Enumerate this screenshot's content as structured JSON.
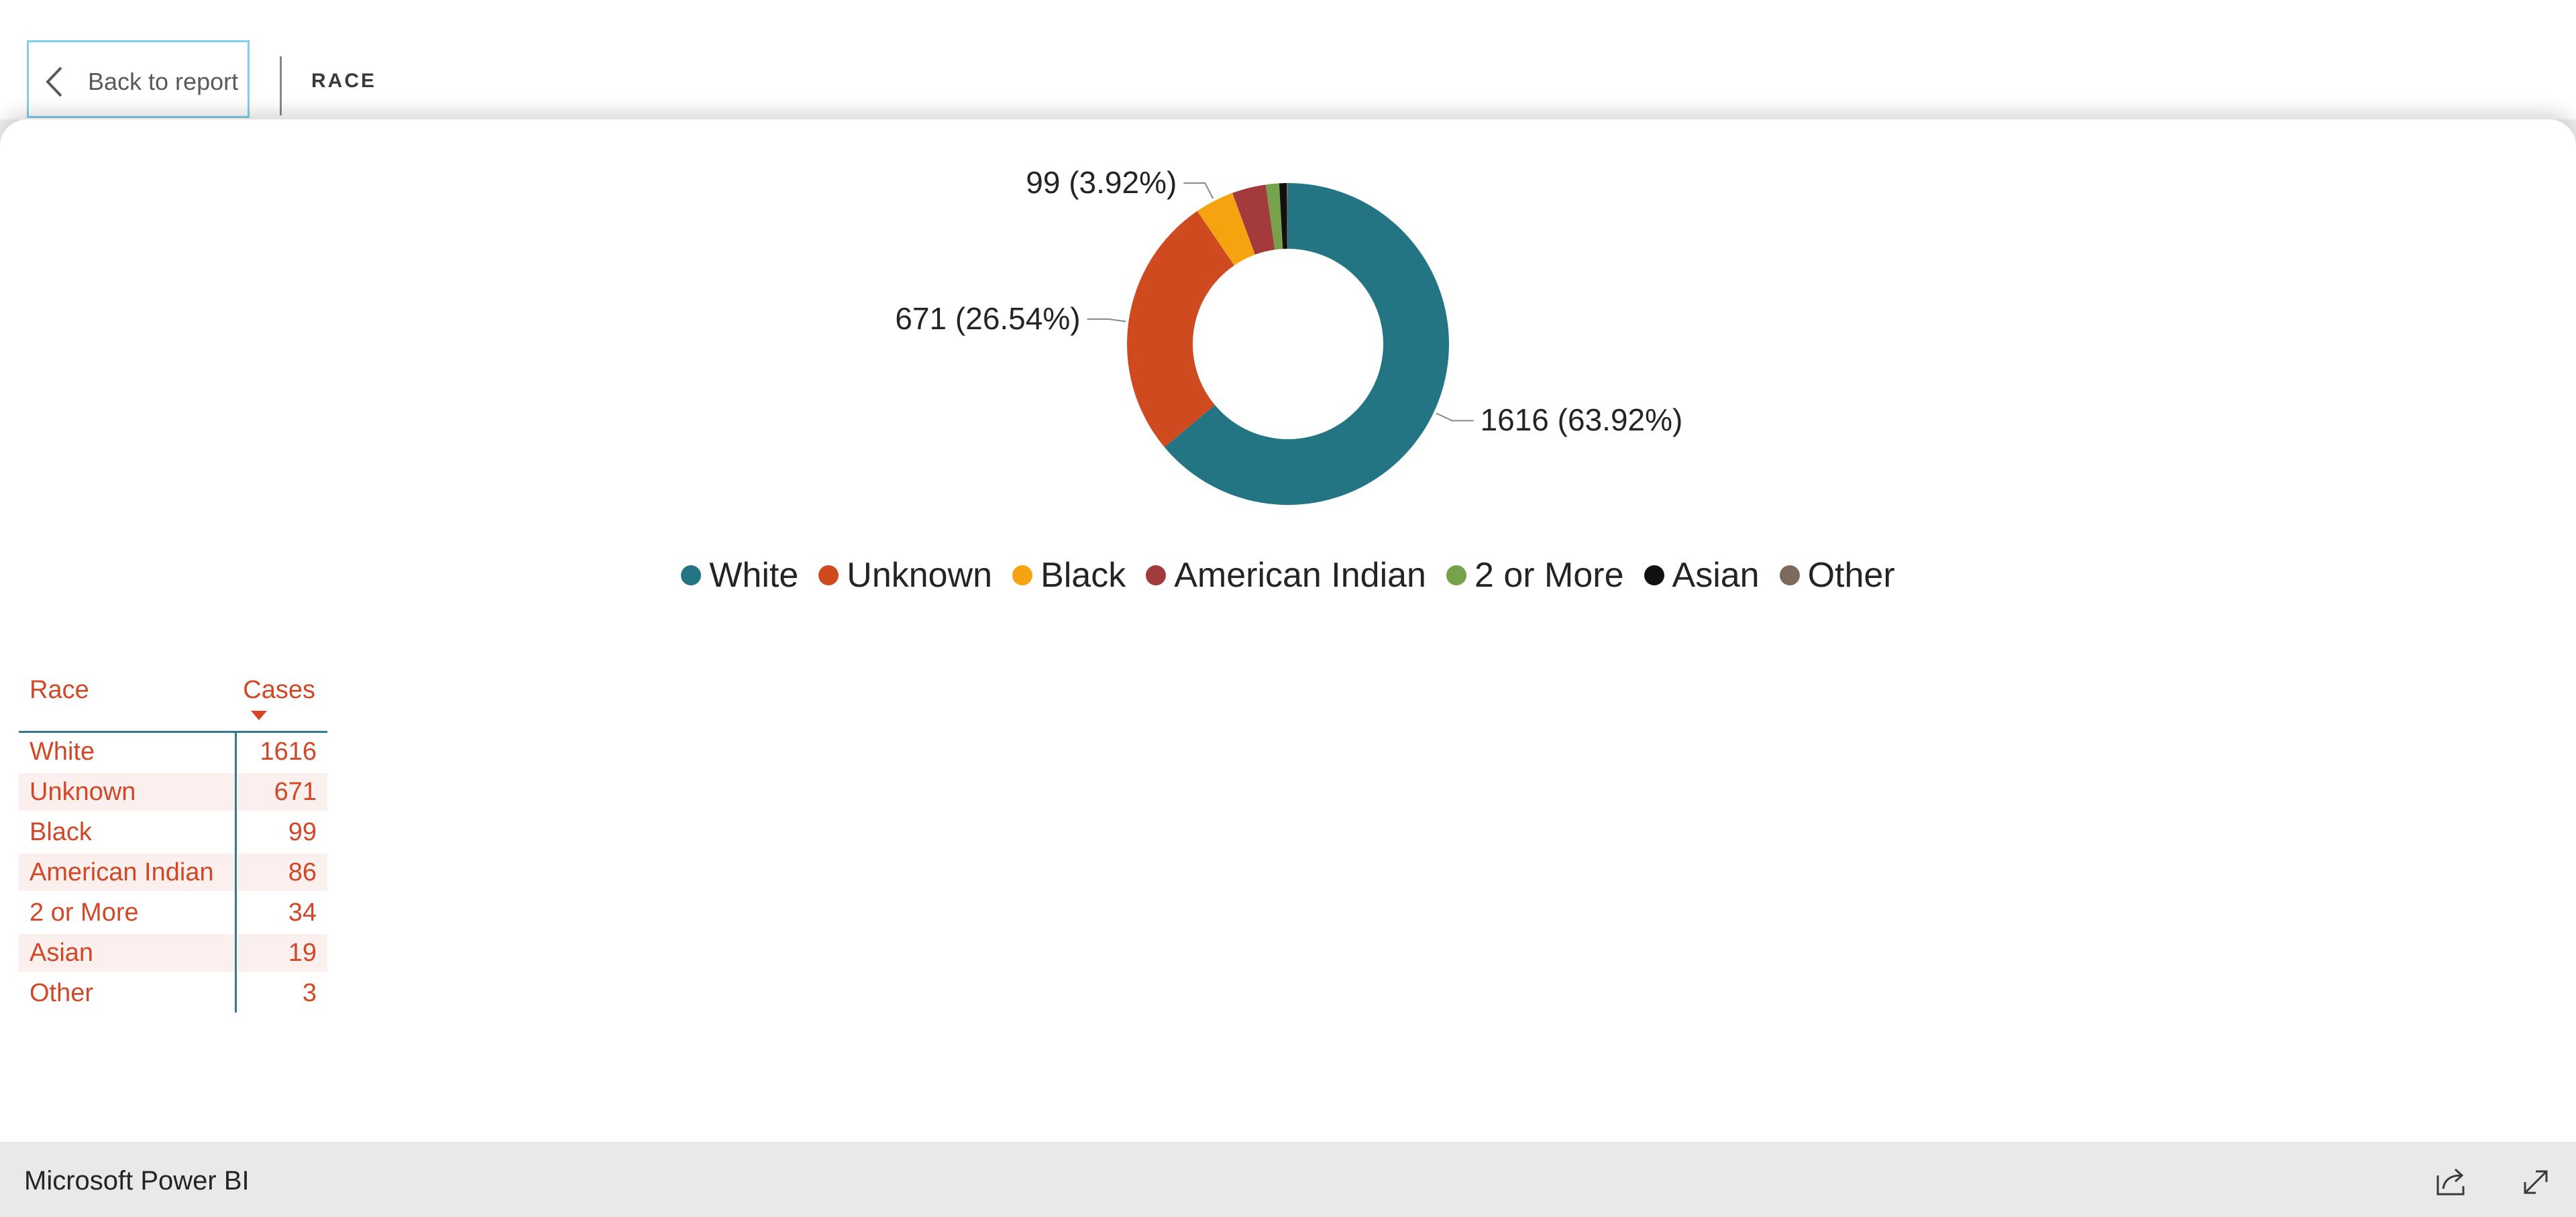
{
  "header": {
    "back_label": "Back to report",
    "title": "RACE"
  },
  "chart_data": {
    "type": "pie",
    "variant": "donut",
    "categories": [
      "White",
      "Unknown",
      "Black",
      "American Indian",
      "2 or More",
      "Asian",
      "Other"
    ],
    "values": [
      1616,
      671,
      99,
      86,
      34,
      19,
      3
    ],
    "colors": [
      "#237584",
      "#d04a20",
      "#f5a410",
      "#a33a3c",
      "#77a14a",
      "#111111",
      "#7d6a5e"
    ],
    "data_labels": [
      {
        "category": "White",
        "text": "1616 (63.92%)"
      },
      {
        "category": "Unknown",
        "text": "671 (26.54%)"
      },
      {
        "category": "Black",
        "text": "99 (3.92%)"
      }
    ],
    "legend_position": "bottom"
  },
  "table": {
    "columns": [
      "Race",
      "Cases"
    ],
    "sort": {
      "column": "Cases",
      "direction": "descending"
    },
    "rows": [
      [
        "White",
        "1616"
      ],
      [
        "Unknown",
        "671"
      ],
      [
        "Black",
        "99"
      ],
      [
        "American Indian",
        "86"
      ],
      [
        "2 or More",
        "34"
      ],
      [
        "Asian",
        "19"
      ],
      [
        "Other",
        "3"
      ]
    ]
  },
  "footer": {
    "brand": "Microsoft Power BI",
    "icons": [
      "share-icon",
      "expand-icon"
    ]
  }
}
